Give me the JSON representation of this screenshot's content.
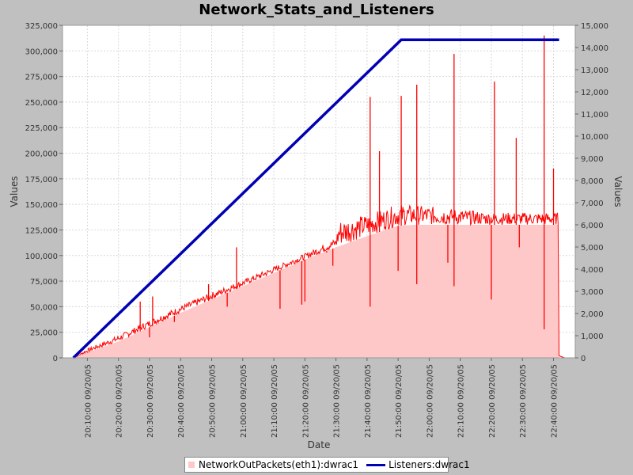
{
  "chart_data": {
    "type": "line",
    "title": "Network_Stats_and_Listeners",
    "xlabel": "Date",
    "ylabel_left": "Values",
    "ylabel_right": "Values",
    "ylim_left": [
      0,
      325000
    ],
    "ylim_right": [
      0,
      15000
    ],
    "x_range_minutes": [
      "20:02:00",
      "22:47:00"
    ],
    "left_ticks": [
      "0",
      "25,000",
      "50,000",
      "75,000",
      "100,000",
      "125,000",
      "150,000",
      "175,000",
      "200,000",
      "225,000",
      "250,000",
      "275,000",
      "300,000",
      "325,000"
    ],
    "right_ticks": [
      "0",
      "1,000",
      "2,000",
      "3,000",
      "4,000",
      "5,000",
      "6,000",
      "7,000",
      "8,000",
      "9,000",
      "10,000",
      "11,000",
      "12,000",
      "13,000",
      "14,000",
      "15,000"
    ],
    "x_ticks": [
      "20:10:00 09/20/05",
      "20:20:00 09/20/05",
      "20:30:00 09/20/05",
      "20:40:00 09/20/05",
      "20:50:00 09/20/05",
      "21:00:00 09/20/05",
      "21:10:00 09/20/05",
      "21:20:00 09/20/05",
      "21:30:00 09/20/05",
      "21:40:00 09/20/05",
      "21:50:00 09/20/05",
      "22:00:00 09/20/05",
      "22:10:00 09/20/05",
      "22:20:00 09/20/05",
      "22:30:00 09/20/05",
      "22:40:00 09/20/05"
    ],
    "x_tick_minutes": [
      10,
      20,
      30,
      40,
      50,
      60,
      70,
      80,
      90,
      100,
      110,
      120,
      130,
      140,
      150,
      160
    ],
    "grid": true,
    "legend_position": "bottom",
    "series": [
      {
        "name": "NetworkOutPackets(eth1):dwrac1",
        "axis": "left",
        "style": "area",
        "fill_color": "#ffc8c8",
        "line_color": "#ff0000",
        "base_points": [
          [
            5.5,
            0
          ],
          [
            10,
            5000
          ],
          [
            20,
            16000
          ],
          [
            30,
            30000
          ],
          [
            40,
            44000
          ],
          [
            50,
            57000
          ],
          [
            60,
            70000
          ],
          [
            70,
            83000
          ],
          [
            80,
            96000
          ],
          [
            90,
            108000
          ],
          [
            100,
            119000
          ],
          [
            110,
            129000
          ],
          [
            115,
            130000
          ],
          [
            120,
            130000
          ],
          [
            140,
            130000
          ],
          [
            161.5,
            130000
          ],
          [
            161.8,
            0
          ]
        ],
        "top_points": [
          [
            5.5,
            0
          ],
          [
            10,
            9000
          ],
          [
            20,
            22000
          ],
          [
            30,
            37000
          ],
          [
            40,
            51000
          ],
          [
            50,
            64000
          ],
          [
            60,
            76000
          ],
          [
            70,
            89000
          ],
          [
            80,
            102000
          ],
          [
            90,
            117000
          ],
          [
            91,
            135000
          ],
          [
            100,
            140000
          ],
          [
            110,
            150000
          ],
          [
            120,
            148000
          ],
          [
            140,
            142000
          ],
          [
            161.5,
            142000
          ],
          [
            161.8,
            2000
          ],
          [
            163.5,
            0
          ]
        ],
        "spikes": [
          [
            27,
            55000
          ],
          [
            31,
            60000
          ],
          [
            49,
            72000
          ],
          [
            58,
            108000
          ],
          [
            79,
            52000
          ],
          [
            87,
            103000
          ],
          [
            101,
            255000
          ],
          [
            104,
            202000
          ],
          [
            111,
            256000
          ],
          [
            116,
            267000
          ],
          [
            128,
            297000
          ],
          [
            141,
            270000
          ],
          [
            148,
            215000
          ],
          [
            157,
            315000
          ],
          [
            160,
            185000
          ]
        ],
        "dips": [
          [
            30,
            20000
          ],
          [
            38,
            35000
          ],
          [
            55,
            50000
          ],
          [
            72,
            48000
          ],
          [
            80,
            55000
          ],
          [
            89,
            90000
          ],
          [
            101,
            50000
          ],
          [
            110,
            85000
          ],
          [
            116,
            72000
          ],
          [
            126,
            93000
          ],
          [
            128,
            70000
          ],
          [
            140,
            57000
          ],
          [
            149,
            108000
          ],
          [
            157,
            28000
          ]
        ]
      },
      {
        "name": "Listeners:dwrac1",
        "axis": "right",
        "style": "line",
        "color": "#0000b4",
        "points": [
          [
            5.5,
            0
          ],
          [
            111,
            14350
          ],
          [
            161.8,
            14350
          ]
        ]
      }
    ]
  }
}
